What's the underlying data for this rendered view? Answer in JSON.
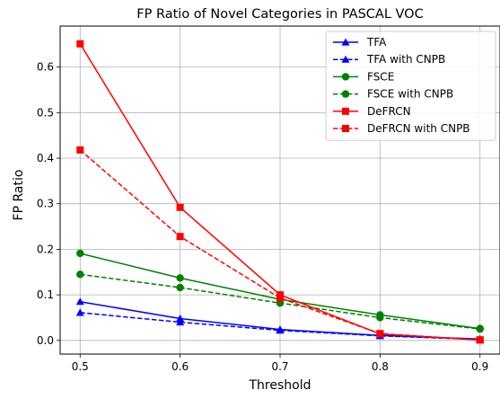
{
  "chart_data": {
    "type": "line",
    "title": "FP Ratio of Novel Categories in PASCAL VOC",
    "xlabel": "Threshold",
    "ylabel": "FP Ratio",
    "x": [
      0.5,
      0.6,
      0.7,
      0.8,
      0.9
    ],
    "xlim": [
      0.48,
      0.92
    ],
    "ylim": [
      -0.03,
      0.69
    ],
    "xticks": [
      "0.5",
      "0.6",
      "0.7",
      "0.8",
      "0.9"
    ],
    "yticks": [
      "0.0",
      "0.1",
      "0.2",
      "0.3",
      "0.4",
      "0.5",
      "0.6"
    ],
    "grid": true,
    "legend_position": "top-right",
    "series": [
      {
        "name": "TFA",
        "color": "#0000ff",
        "linestyle": "solid",
        "marker": "triangle",
        "values": [
          0.085,
          0.048,
          0.024,
          0.011,
          0.003
        ]
      },
      {
        "name": "TFA with CNPB",
        "color": "#0000ff",
        "linestyle": "dashed",
        "marker": "triangle",
        "values": [
          0.061,
          0.04,
          0.022,
          0.01,
          0.002
        ]
      },
      {
        "name": "FSCE",
        "color": "#008000",
        "linestyle": "solid",
        "marker": "circle",
        "values": [
          0.191,
          0.137,
          0.09,
          0.056,
          0.026
        ]
      },
      {
        "name": "FSCE with CNPB",
        "color": "#008000",
        "linestyle": "dashed",
        "marker": "circle",
        "values": [
          0.145,
          0.116,
          0.082,
          0.05,
          0.025
        ]
      },
      {
        "name": "DeFRCN",
        "color": "#ff0000",
        "linestyle": "solid",
        "marker": "square",
        "values": [
          0.651,
          0.292,
          0.1,
          0.014,
          0.001
        ]
      },
      {
        "name": "DeFRCN with CNPB",
        "color": "#ff0000",
        "linestyle": "dashed",
        "marker": "square",
        "values": [
          0.418,
          0.228,
          0.093,
          0.015,
          0.001
        ]
      }
    ]
  }
}
